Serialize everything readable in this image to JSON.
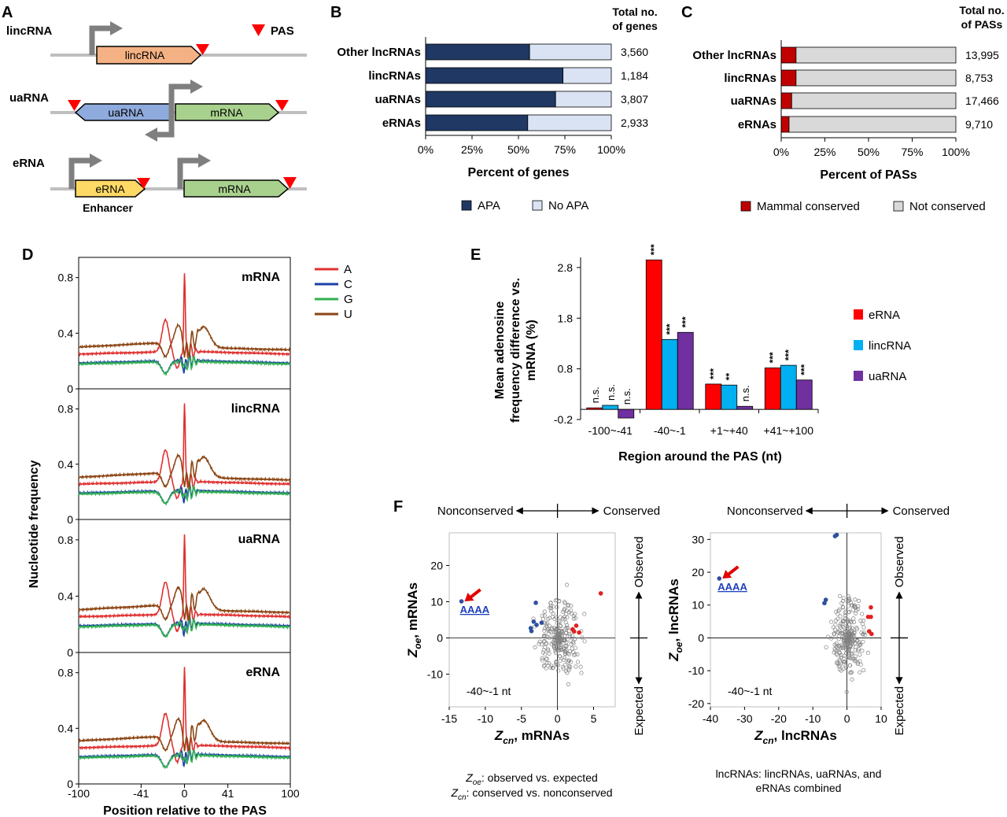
{
  "panels": {
    "A": "A",
    "B": "B",
    "C": "C",
    "D": "D",
    "E": "E",
    "F": "F"
  },
  "panel_a": {
    "rows": [
      {
        "name": "lincRNA",
        "box": "lincRNA"
      },
      {
        "name": "uaRNA",
        "box_left": "uaRNA",
        "box_right": "mRNA"
      },
      {
        "name": "eRNA",
        "box_left": "eRNA",
        "box_right": "mRNA",
        "enhancer": "Enhancer"
      }
    ],
    "pas_legend": "PAS",
    "colors": {
      "lincRNA": "#f4b183",
      "uaRNA": "#8faadc",
      "mRNA": "#a9d18e",
      "eRNA": "#ffd966",
      "pas": "#ff0000",
      "arrow": "#808080"
    }
  },
  "chart_data": [
    {
      "id": "B",
      "type": "bar",
      "orientation": "horizontal",
      "stacked": true,
      "categories": [
        "Other lncRNAs",
        "lincRNAs",
        "uaRNAs",
        "eRNAs"
      ],
      "series": [
        {
          "name": "APA",
          "values": [
            56,
            74,
            70,
            55
          ]
        },
        {
          "name": "No APA",
          "values": [
            44,
            26,
            30,
            45
          ]
        }
      ],
      "annotations": {
        "header": [
          "Total no.",
          "of genes"
        ],
        "totals": [
          "3,560",
          "1,184",
          "3,807",
          "2,933"
        ]
      },
      "xlabel": "Percent of genes",
      "xticks": [
        "0%",
        "25%",
        "50%",
        "75%",
        "100%"
      ],
      "xlim": [
        0,
        100
      ],
      "colors": {
        "APA": "#1f3864",
        "No APA": "#dae3f3"
      },
      "legend": "bottom"
    },
    {
      "id": "C",
      "type": "bar",
      "orientation": "horizontal",
      "stacked": true,
      "categories": [
        "Other lncRNAs",
        "lincRNAs",
        "uaRNAs",
        "eRNAs"
      ],
      "series": [
        {
          "name": "Mammal conserved",
          "values": [
            8.5,
            8.5,
            6,
            4.5
          ]
        },
        {
          "name": "Not conserved",
          "values": [
            91.5,
            91.5,
            94,
            95.5
          ]
        }
      ],
      "annotations": {
        "header": [
          "Total no.",
          "of PASs"
        ],
        "totals": [
          "13,995",
          "8,753",
          "17,466",
          "9,710"
        ]
      },
      "xlabel": "Percent of PASs",
      "xticks": [
        "0%",
        "25%",
        "50%",
        "75%",
        "100%"
      ],
      "xlim": [
        0,
        100
      ],
      "colors": {
        "Mammal conserved": "#c00000",
        "Not conserved": "#d9d9d9"
      },
      "legend": "bottom"
    },
    {
      "id": "D",
      "type": "line",
      "facets": [
        "mRNA",
        "lincRNA",
        "uaRNA",
        "eRNA"
      ],
      "legend_entries": [
        {
          "name": "A",
          "color": "#e03030"
        },
        {
          "name": "C",
          "color": "#1f3fa8"
        },
        {
          "name": "G",
          "color": "#30b050"
        },
        {
          "name": "U",
          "color": "#8b4513"
        }
      ],
      "ylabel": "Nucleotide frequency",
      "xlabel": "Position relative to the PAS",
      "yticks": [
        "0",
        "0.4",
        "0.8"
      ],
      "ylim": [
        0,
        0.9
      ],
      "xticks": [
        "-100",
        "-41",
        "0",
        "41",
        "100"
      ],
      "xlim": [
        -100,
        100
      ],
      "profile_offsets": [
        0,
        0.006,
        0.004,
        0.01
      ]
    },
    {
      "id": "E",
      "type": "bar",
      "categories": [
        "-100~-41",
        "-40~-1",
        "+1~+40",
        "+41~+100"
      ],
      "series": [
        {
          "name": "eRNA",
          "values": [
            0.03,
            2.95,
            0.5,
            0.82
          ]
        },
        {
          "name": "lincRNA",
          "values": [
            0.08,
            1.38,
            0.48,
            0.87
          ]
        },
        {
          "name": "uaRNA",
          "values": [
            -0.17,
            1.52,
            0.06,
            0.58
          ]
        }
      ],
      "significance": [
        [
          "n.s.",
          "n.s.",
          "n.s."
        ],
        [
          "***",
          "***",
          "***"
        ],
        [
          "***",
          "**",
          "n.s."
        ],
        [
          "***",
          "***",
          "***"
        ]
      ],
      "ylabel": [
        "Mean adenosine",
        "frequency difference vs.",
        "mRNA (%)"
      ],
      "xlabel": "Region around the PAS (nt)",
      "yticks": [
        "2.8",
        "1.8",
        "0.8",
        "-0.2"
      ],
      "ylim": [
        -0.2,
        3.0
      ],
      "colors": {
        "eRNA": "#ff0000",
        "lincRNA": "#00b0f0",
        "uaRNA": "#7030a0"
      },
      "legend": "right"
    },
    {
      "id": "F1",
      "type": "scatter",
      "xlabel_var": "Z",
      "xlabel_sub": "cn",
      "xlabel_rest": ", mRNAs",
      "ylabel_var": "Z",
      "ylabel_sub": "oe",
      "ylabel_rest": ", mRNAs",
      "xticks": [
        "-15",
        "-10",
        "-5",
        "0",
        "5"
      ],
      "xlim": [
        -15,
        8
      ],
      "yticks": [
        "20",
        "10",
        "0",
        "-10"
      ],
      "ylim": [
        -19,
        29
      ],
      "note": "-40~-1 nt",
      "highlight": "AAAA",
      "top_left": "Nonconserved",
      "top_right": "Conserved",
      "side_top": "Observed",
      "side_bottom": "Expected",
      "blue_points": [
        [
          -13.3,
          10.1
        ],
        [
          -3.0,
          9.7
        ],
        [
          -3.6,
          1.9
        ],
        [
          -2.9,
          3.6
        ],
        [
          -3.3,
          4.5
        ],
        [
          -2.2,
          4.2
        ],
        [
          -3.7,
          2.7
        ]
      ],
      "red_points": [
        [
          6.0,
          12.3
        ],
        [
          2.6,
          3.4
        ],
        [
          2.3,
          1.8
        ],
        [
          3.0,
          1.5
        ],
        [
          2.1,
          2.4
        ]
      ],
      "ellipse": {
        "cx": 0.2,
        "cy": 0,
        "rx": 2.9,
        "ry": 11
      }
    },
    {
      "id": "F2",
      "type": "scatter",
      "xlabel_var": "Z",
      "xlabel_sub": "cn",
      "xlabel_rest": ", lncRNAs",
      "ylabel_var": "Z",
      "ylabel_sub": "oe",
      "ylabel_rest": ", lncRNAs",
      "xticks": [
        "-40",
        "-30",
        "-20",
        "-10",
        "0",
        "10"
      ],
      "xlim": [
        -40,
        10
      ],
      "yticks": [
        "30",
        "20",
        "10",
        "0",
        "-10",
        "-20"
      ],
      "ylim": [
        -21,
        32
      ],
      "note": "-40~-1 nt",
      "highlight": "AAAA",
      "top_left": "Nonconserved",
      "top_right": "Conserved",
      "side_top": "Observed",
      "side_bottom": "Expected",
      "blue_points": [
        [
          -37.4,
          18.1
        ],
        [
          -3.5,
          31.0
        ],
        [
          -3.0,
          31.4
        ],
        [
          -6.2,
          11.6
        ],
        [
          -6.6,
          10.6
        ]
      ],
      "red_points": [
        [
          7.0,
          9.3
        ],
        [
          6.2,
          6.4
        ],
        [
          7.0,
          6.4
        ],
        [
          6.5,
          2.0
        ],
        [
          7.2,
          1.2
        ]
      ],
      "ellipse": {
        "cx": 0.5,
        "cy": 0,
        "rx": 4.8,
        "ry": 13
      }
    }
  ],
  "f_footnotes": {
    "left_line1_var": "Z",
    "left_line1_sub": "oe",
    "left_line1_rest": ": observed vs. expected",
    "left_line2_var": "Z",
    "left_line2_sub": "cn",
    "left_line2_rest": ": conserved vs. nonconserved",
    "right_line1": "lncRNAs: lincRNAs, uaRNAs, and",
    "right_line2": "eRNAs combined"
  }
}
